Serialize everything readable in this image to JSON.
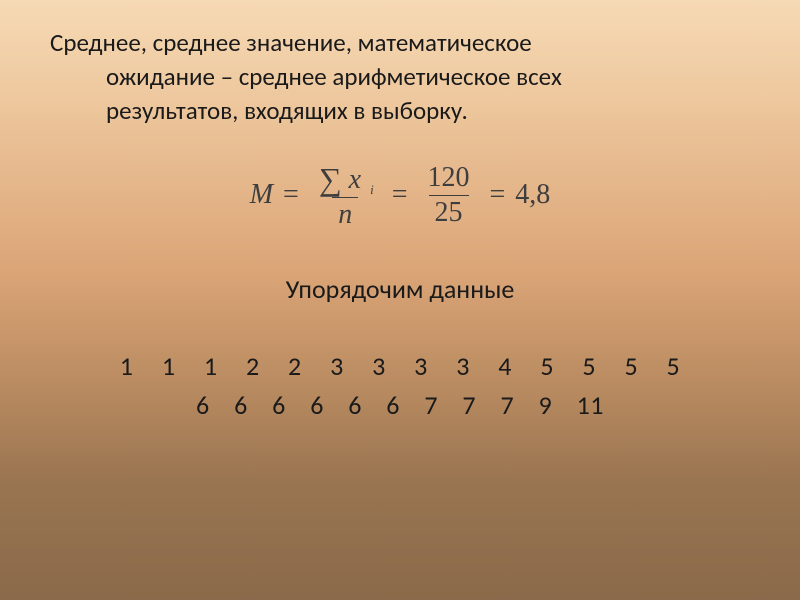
{
  "definition": {
    "line1": "Среднее, среднее значение, математическое",
    "line2": "ожидание – среднее арифметическое всех",
    "line3": "результатов, входящих в выборку."
  },
  "formula": {
    "M": "M",
    "eq": "=",
    "sum": "∑",
    "x": "x",
    "sub_i": "i",
    "n": "n",
    "num2": "120",
    "den2": "25",
    "result": "4,8"
  },
  "subheading": "Упорядочим данные",
  "data": {
    "line1": "1   1   1   2   2   3   3   3   3   4   5   5   5   5",
    "line2": "6   6   6   6   6   6   7   7   7   9   11"
  },
  "colors": {
    "text": "#1a1a1a",
    "formula": "#3e3e3e",
    "bg_top": "#f6dab5",
    "bg_bottom": "#8a6a4a"
  },
  "fonts": {
    "body_family": "Calibri",
    "body_size_pt": 19,
    "formula_family": "Times New Roman",
    "formula_size_pt": 21
  },
  "type": "document-slide"
}
